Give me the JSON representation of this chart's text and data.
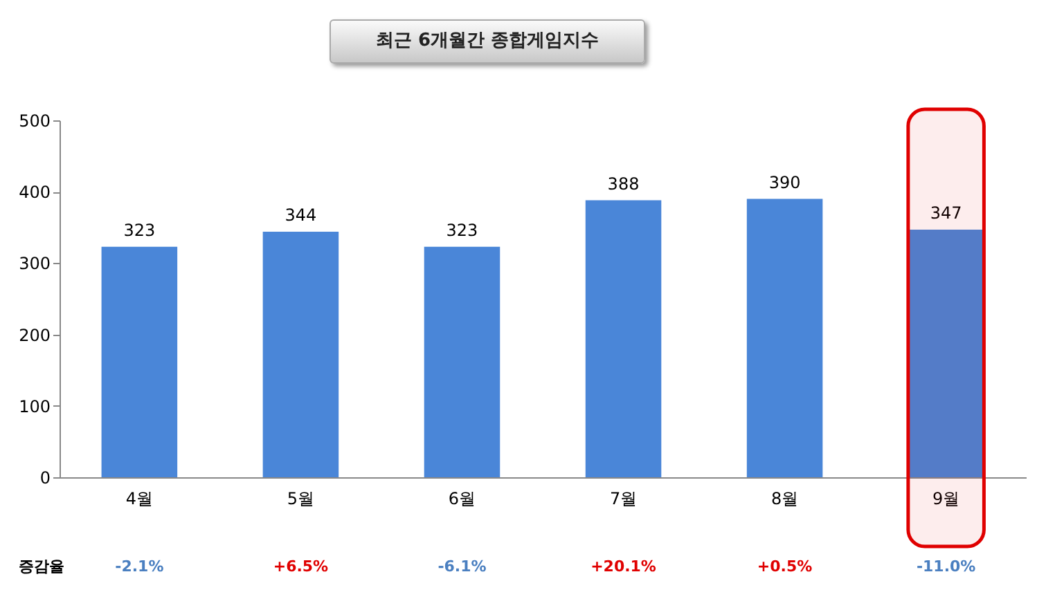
{
  "chart_data": {
    "type": "bar",
    "title": "최근 6개월간 종합게임지수",
    "categories": [
      "4월",
      "5월",
      "6월",
      "7월",
      "8월",
      "9월"
    ],
    "values": [
      323,
      344,
      323,
      388,
      390,
      347
    ],
    "color": "#4a86d8",
    "ylim": [
      0,
      500
    ],
    "yticks": [
      0,
      100,
      200,
      300,
      400,
      500
    ],
    "grid": false,
    "data_labels": true,
    "bands": [
      {
        "axis": "x",
        "from": "9월",
        "to": "9월",
        "color": "#e00000"
      }
    ],
    "annotations": [
      "증감율",
      "-2.1%",
      "+6.5%",
      "-6.1%",
      "+20.1%",
      "+0.5%",
      "-11.0%"
    ]
  }
}
